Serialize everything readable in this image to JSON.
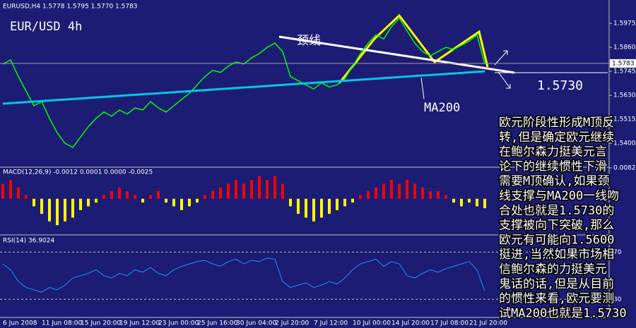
{
  "chart_data": [
    {
      "type": "line",
      "title": "EURUSD,H4 1.5778 1.5795 1.5770 1.5783",
      "subtitle": "EUR/USD 4h",
      "annotations": [
        "颈线",
        "1.5730",
        "MA200"
      ],
      "note_lines": [
        "欧元阶段性形成M顶反",
        "转,但是确定欧元继续",
        "在鲍尔森力挺美元言",
        "论下的继续惯性下滑",
        "需要M顶确认,如果颈",
        "线支撑与MA200一线吻",
        "合处也就是1.5730的",
        "支撑被向下突破,那么",
        "欧元有可能向1.5600",
        "挺进,当然如果市场相",
        "信鲍尔森的力挺美元",
        "鬼话的话,但是从目前",
        "的惯性来看,欧元要测",
        "试MA200也就是1.5730"
      ],
      "categories": [
        "6 Jun 2008",
        null,
        null,
        null,
        null,
        "11 Jun 08:00",
        null,
        null,
        null,
        null,
        "15 Jun 20:00",
        null,
        null,
        null,
        null,
        "19 Jun 12:00",
        null,
        null,
        null,
        null,
        "23 Jun 00:00",
        null,
        null,
        null,
        null,
        "25 Jun 16:00",
        null,
        null,
        null,
        null,
        "30 Jun 04:00",
        null,
        null,
        null,
        null,
        "2 Jul 20:00",
        null,
        null,
        null,
        null,
        "7 Jul 12:00",
        null,
        null,
        null,
        null,
        "10 Jul 00:00",
        null,
        null,
        null,
        null,
        "14 Jul 20:00",
        null,
        null,
        null,
        null,
        "17 Jul 08:00",
        null,
        null,
        null,
        null,
        "21 Jul 20:00",
        null,
        null
      ],
      "series": [
        {
          "name": "EURUSD",
          "color": "#00ff00",
          "values": [
            1.578,
            1.58,
            1.572,
            1.565,
            1.558,
            1.56,
            1.552,
            1.545,
            1.54,
            1.538,
            1.543,
            1.548,
            1.552,
            1.555,
            1.553,
            1.556,
            1.554,
            1.557,
            1.556,
            1.56,
            1.557,
            1.555,
            1.558,
            1.561,
            1.564,
            1.568,
            1.572,
            1.575,
            1.574,
            1.577,
            1.579,
            1.578,
            1.581,
            1.583,
            1.586,
            1.588,
            1.584,
            1.572,
            1.57,
            1.568,
            1.566,
            1.569,
            1.567,
            1.568,
            1.571,
            1.577,
            1.583,
            1.588,
            1.592,
            1.59,
            1.596,
            1.6,
            1.594,
            1.588,
            1.584,
            1.582,
            1.584,
            1.586,
            1.585,
            1.587,
            1.589,
            1.592,
            1.578
          ]
        },
        {
          "name": "MA200",
          "color": "#00c8e6",
          "values": [
            1.559,
            1.55925,
            1.5595,
            1.55975,
            1.56,
            1.56025,
            1.5605,
            1.56075,
            1.561,
            1.56125,
            1.5615,
            1.56175,
            1.562,
            1.56225,
            1.5625,
            1.56275,
            1.563,
            1.56325,
            1.5635,
            1.56375,
            1.564,
            1.56425,
            1.5645,
            1.56475,
            1.565,
            1.56525,
            1.5655,
            1.56575,
            1.566,
            1.56625,
            1.5665,
            1.56675,
            1.567,
            1.56725,
            1.5675,
            1.56775,
            1.568,
            1.56825,
            1.5685,
            1.56875,
            1.569,
            1.56925,
            1.5695,
            1.56975,
            1.57,
            1.57025,
            1.5705,
            1.57075,
            1.571,
            1.57125,
            1.5715,
            1.57175,
            1.572,
            1.57225,
            1.5725,
            1.57275,
            1.573,
            1.57325,
            1.5735,
            1.57375,
            1.574,
            1.57425,
            1.5745
          ]
        }
      ],
      "ylim": [
        1.5289,
        1.6087
      ],
      "yticks": [
        1.5975,
        {
          "value": 1.586,
          "label": "1.5860"
        },
        1.5745,
        {
          "value": 1.563,
          "label": "1.5630"
        },
        1.5515,
        {
          "value": 1.54,
          "label": "1.5400"
        }
      ],
      "current_price": 1.5783
    },
    {
      "type": "bar",
      "title": "MACD(12,26,9) -0.0012 0.0001 0.0000 -0.0025",
      "up_color": "#ff0000",
      "down_color": "#ffff00",
      "values": [
        0.004,
        0.005,
        0.003,
        0.001,
        -0.002,
        -0.004,
        -0.006,
        -0.007,
        -0.006,
        -0.005,
        -0.003,
        -0.002,
        -0.001,
        0.001,
        0.002,
        0.003,
        0.002,
        0.001,
        -0.001,
        0.001,
        0.002,
        -0.001,
        -0.002,
        -0.003,
        -0.002,
        -0.001,
        0.001,
        0.002,
        0.003,
        0.004,
        0.005,
        0.004,
        0.005,
        0.006,
        0.005,
        0.006,
        0.004,
        -0.002,
        -0.004,
        -0.005,
        -0.006,
        -0.005,
        -0.004,
        -0.003,
        -0.002,
        -0.001,
        0.001,
        0.002,
        0.003,
        0.004,
        0.005,
        0.004,
        0.005,
        0.004,
        0.003,
        0.002,
        0.002,
        0.001,
        -0.001,
        -0.002,
        -0.001,
        -0.002,
        -0.0025
      ],
      "ylim": [
        -0.0094,
        0.0082
      ],
      "yticks": [
        0.0082
      ]
    },
    {
      "type": "line",
      "title": "RSI(14) 36.9024",
      "color": "#1e90ff",
      "values": [
        60,
        55,
        45,
        40,
        38,
        36,
        40,
        38,
        42,
        48,
        50,
        52,
        55,
        50,
        48,
        52,
        50,
        55,
        53,
        57,
        52,
        50,
        55,
        58,
        60,
        62,
        63,
        60,
        58,
        62,
        64,
        60,
        63,
        62,
        65,
        64,
        45,
        40,
        42,
        44,
        40,
        42,
        45,
        43,
        48,
        55,
        60,
        62,
        64,
        58,
        62,
        60,
        50,
        48,
        52,
        55,
        53,
        56,
        58,
        60,
        62,
        55,
        36.9024
      ],
      "ylim": [
        15.2,
        84
      ],
      "yticks": [
        30,
        70
      ]
    }
  ]
}
